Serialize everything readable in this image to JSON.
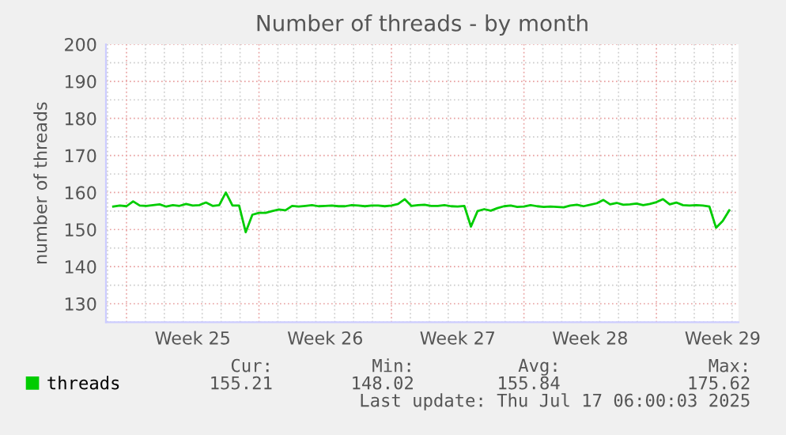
{
  "chart_data": {
    "type": "line",
    "title": "Number of threads - by month",
    "ylabel": "number of threads",
    "categories": [
      null,
      null,
      null,
      null,
      null,
      null,
      null,
      null,
      null,
      null,
      null,
      null,
      "Week 25",
      null,
      null,
      null,
      null,
      null,
      null,
      null,
      null,
      null,
      null,
      null,
      null,
      null,
      null,
      null,
      null,
      null,
      null,
      null,
      "Week 26",
      null,
      null,
      null,
      null,
      null,
      null,
      null,
      null,
      null,
      null,
      null,
      null,
      null,
      null,
      null,
      null,
      null,
      null,
      null,
      "Week 27",
      null,
      null,
      null,
      null,
      null,
      null,
      null,
      null,
      null,
      null,
      null,
      null,
      null,
      null,
      null,
      null,
      null,
      null,
      null,
      "Week 28",
      null,
      null,
      null,
      null,
      null,
      null,
      null,
      null,
      null,
      null,
      null,
      null,
      null,
      null,
      null,
      null,
      null,
      null,
      null,
      "Week 29",
      null
    ],
    "series": [
      {
        "name": "threads",
        "color": "#00cc00",
        "values": [
          156.2,
          156.5,
          156.3,
          157.6,
          156.5,
          156.4,
          156.6,
          156.8,
          156.2,
          156.6,
          156.4,
          156.9,
          156.5,
          156.6,
          157.3,
          156.4,
          156.6,
          160.0,
          156.5,
          156.5,
          149.3,
          154.0,
          154.5,
          154.5,
          155.0,
          155.4,
          155.2,
          156.4,
          156.2,
          156.4,
          156.6,
          156.3,
          156.4,
          156.5,
          156.3,
          156.3,
          156.6,
          156.5,
          156.3,
          156.5,
          156.5,
          156.3,
          156.5,
          156.9,
          158.2,
          156.4,
          156.6,
          156.7,
          156.4,
          156.4,
          156.6,
          156.3,
          156.2,
          156.4,
          150.8,
          155.0,
          155.5,
          155.1,
          155.8,
          156.3,
          156.5,
          156.1,
          156.2,
          156.6,
          156.3,
          156.1,
          156.2,
          156.1,
          156.0,
          156.5,
          156.7,
          156.3,
          156.7,
          157.1,
          158.0,
          156.8,
          157.2,
          156.7,
          156.8,
          157.0,
          156.6,
          156.9,
          157.4,
          158.2,
          156.8,
          157.3,
          156.6,
          156.5,
          156.6,
          156.5,
          156.2,
          150.5,
          152.3,
          155.2
        ]
      }
    ],
    "ylim": [
      125,
      200
    ],
    "yticks": [
      130,
      140,
      150,
      160,
      170,
      180,
      190,
      200
    ],
    "grid": true,
    "legend": "bottom left",
    "line_style": "solid",
    "marker": "none",
    "annotations": [
      "Cur:",
      "Min:",
      "Avg:",
      "Max:",
      "155.21",
      "148.02",
      "155.84",
      "175.62",
      "Last update: Thu Jul 17 06:00:03 2025"
    ]
  }
}
